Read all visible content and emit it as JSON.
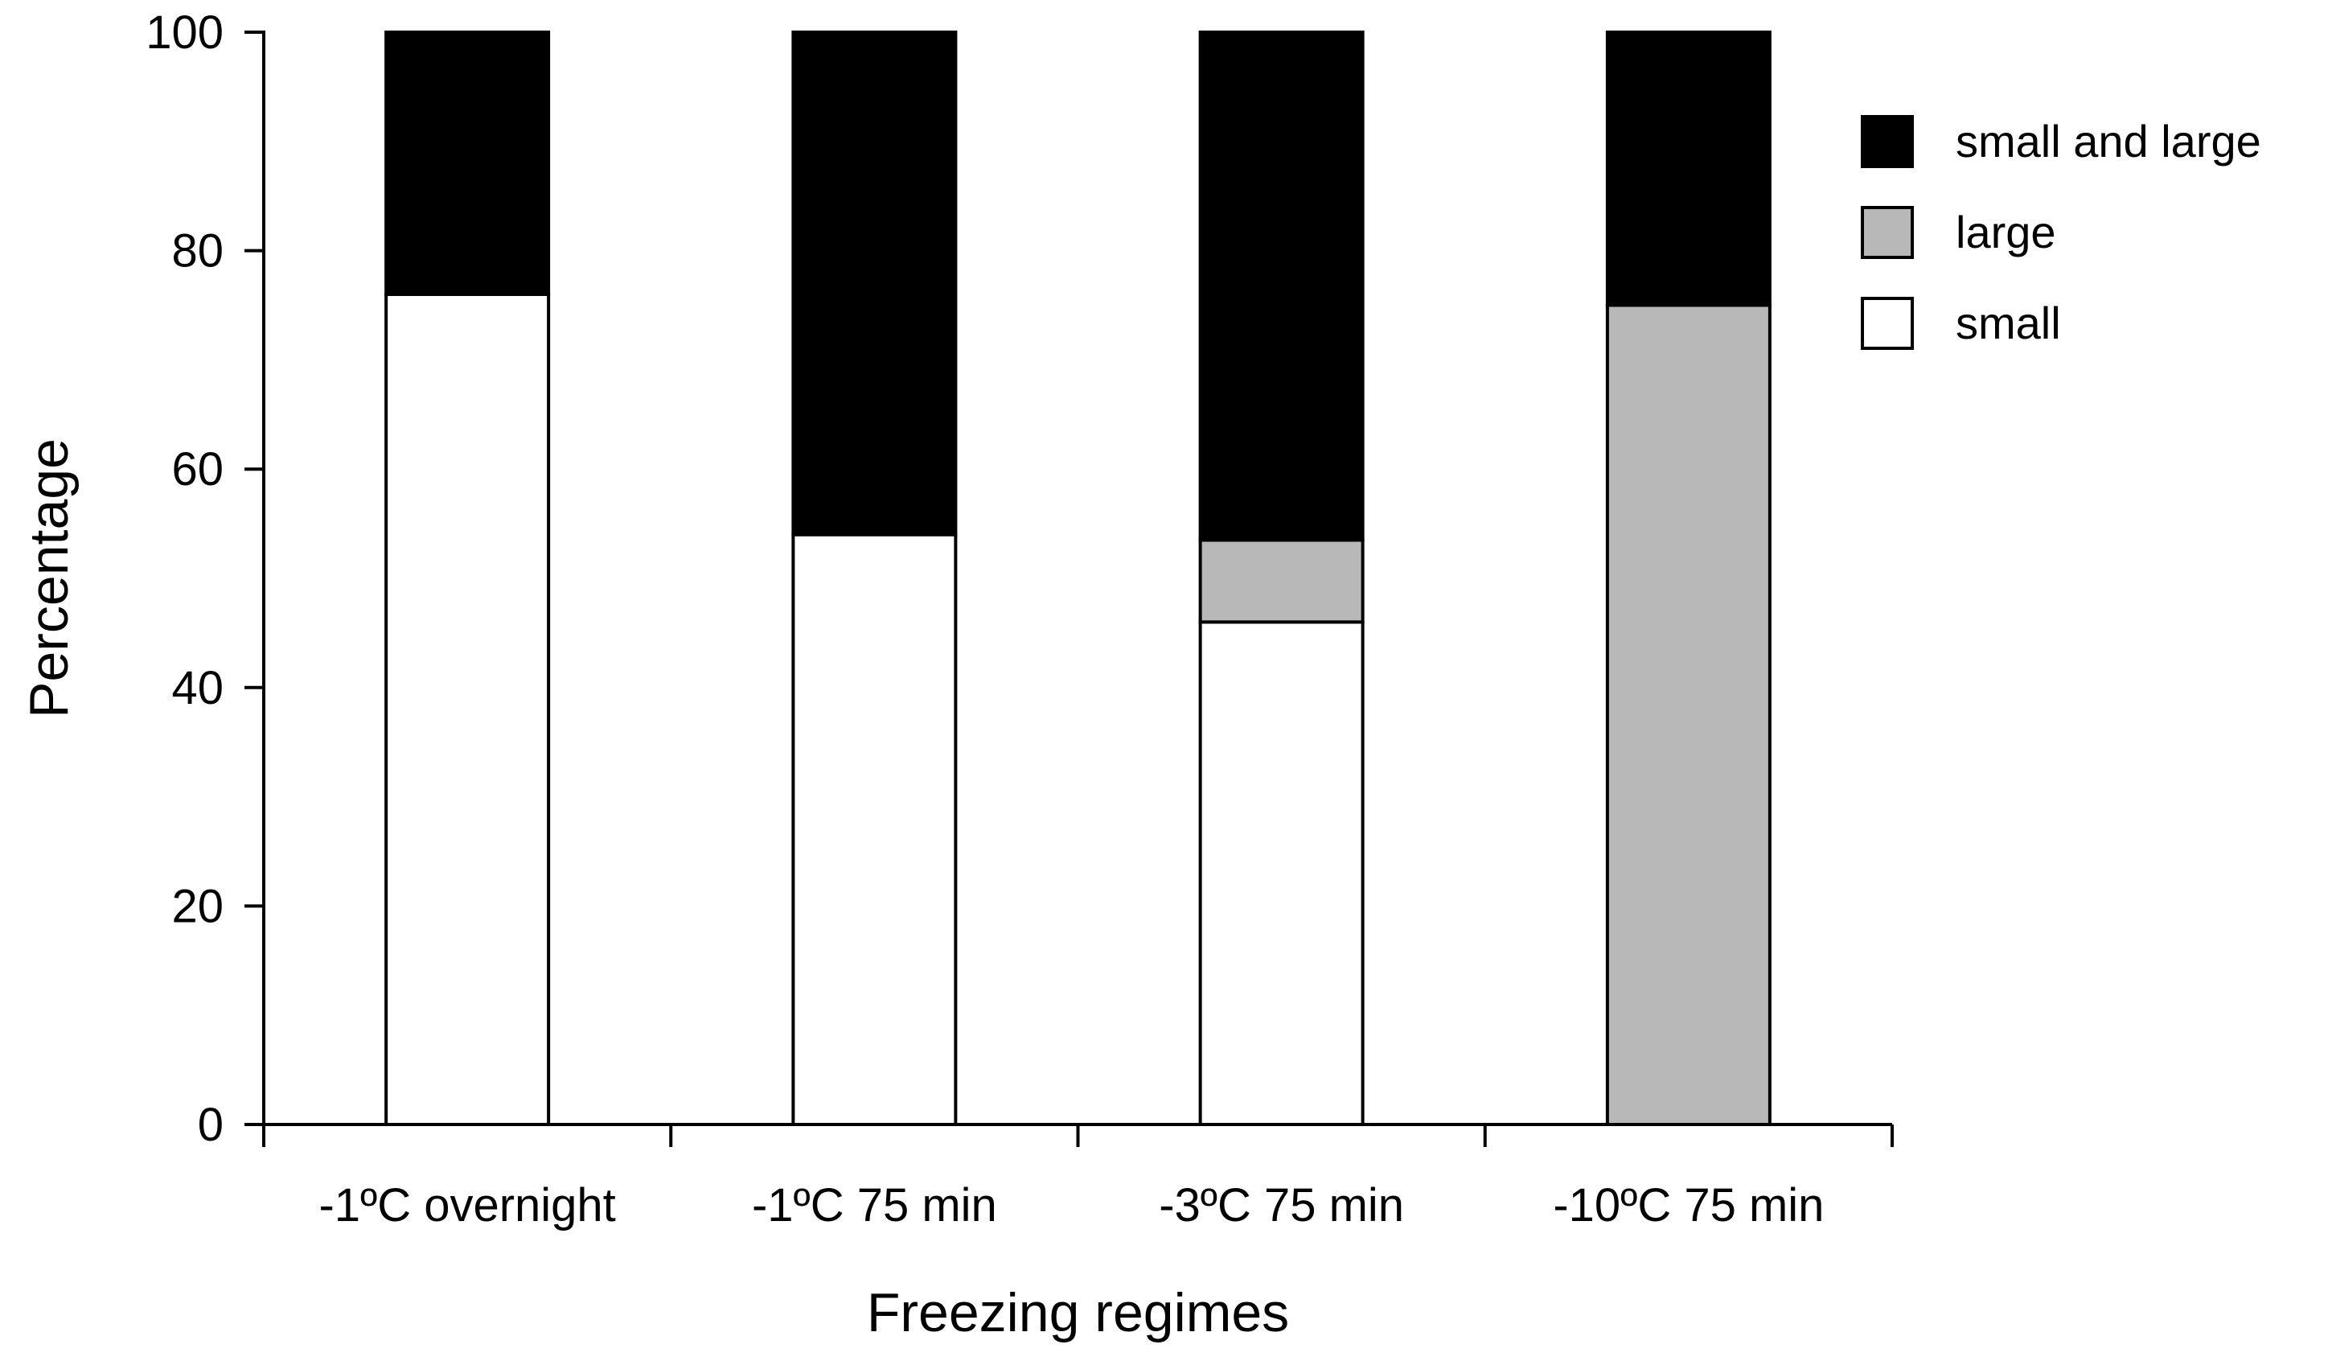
{
  "chart_data": {
    "type": "bar",
    "stacked": true,
    "title": "",
    "xlabel": "Freezing regimes",
    "ylabel": "Percentage",
    "ylim": [
      0,
      100
    ],
    "yticks": [
      0,
      20,
      40,
      60,
      80,
      100
    ],
    "grid": false,
    "legend_position": "top-right",
    "categories": [
      "-1ºC overnight",
      "-1ºC 75 min",
      "-3ºC 75 min",
      "-10ºC 75 min"
    ],
    "series": [
      {
        "name": "small",
        "color": "#ffffff",
        "values": [
          76,
          54,
          46,
          0
        ]
      },
      {
        "name": "large",
        "color": "#b8b8b8",
        "values": [
          0,
          0,
          7.5,
          75
        ]
      },
      {
        "name": "small and large",
        "color": "#000000",
        "values": [
          24,
          46,
          46.5,
          25
        ]
      }
    ],
    "legend_order": [
      "small and large",
      "large",
      "small"
    ]
  }
}
